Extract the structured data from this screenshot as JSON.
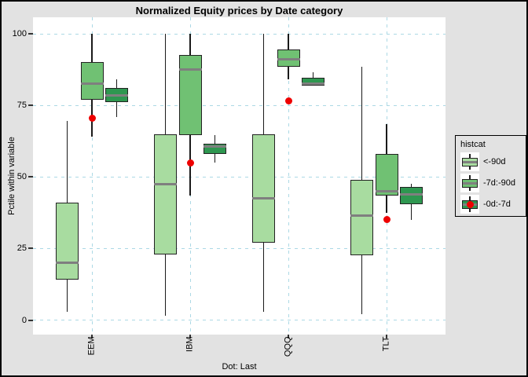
{
  "chart_data": {
    "type": "boxplot",
    "title": "Normalized Equity prices by Date category",
    "ylabel": "Pctile within variable",
    "xlabel": "Dot: Last",
    "ylim": [
      0,
      100
    ],
    "yticks": [
      0,
      25,
      50,
      75,
      100
    ],
    "categories": [
      "EEM",
      "IBM",
      "QQQ",
      "TLT"
    ],
    "grid": true,
    "legend": {
      "title": "histcat",
      "position": "right"
    },
    "colors": {
      "grid": "#ACD9E5",
      "median": "#7F7F7F",
      "box_border": "#222222",
      "panel_bg": "#FFFFFF",
      "outer_bg": "#E2E2E2",
      "dot": "#EE0000"
    },
    "series": [
      {
        "name": "<-90d",
        "color": "#A8DCA0",
        "boxes": [
          {
            "lo": 3,
            "q1": 14,
            "med": 20,
            "q3": 41,
            "hi": 69.5
          },
          {
            "lo": 1.5,
            "q1": 23,
            "med": 47.5,
            "q3": 65,
            "hi": 100
          },
          {
            "lo": 3,
            "q1": 27,
            "med": 42.5,
            "q3": 65,
            "hi": 100
          },
          {
            "lo": 2,
            "q1": 22.5,
            "med": 36.5,
            "q3": 49,
            "hi": 88.5
          }
        ]
      },
      {
        "name": "-7d:-90d",
        "color": "#70C173",
        "boxes": [
          {
            "lo": 64,
            "q1": 77,
            "med": 82.5,
            "q3": 90,
            "hi": 100
          },
          {
            "lo": 43.5,
            "q1": 64.5,
            "med": 87.5,
            "q3": 92.5,
            "hi": 100
          },
          {
            "lo": 84,
            "q1": 88.5,
            "med": 91,
            "q3": 94.5,
            "hi": 100
          },
          {
            "lo": 37.5,
            "q1": 43.5,
            "med": 45,
            "q3": 58,
            "hi": 68.5
          }
        ]
      },
      {
        "name": "-0d:-7d",
        "color": "#2E9750",
        "boxes": [
          {
            "lo": 71,
            "q1": 76,
            "med": 78.5,
            "q3": 81,
            "hi": 84
          },
          {
            "lo": 55,
            "q1": 58,
            "med": 60.5,
            "q3": 61.5,
            "hi": 64.5
          },
          {
            "lo": 82,
            "q1": 82,
            "med": 82.5,
            "q3": 84.5,
            "hi": 86.5
          },
          {
            "lo": 35,
            "q1": 40.5,
            "med": 44,
            "q3": 46.5,
            "hi": 47.5
          }
        ],
        "dots": [
          70.5,
          55,
          76.5,
          35
        ],
        "dot_color": "#EE0000"
      }
    ]
  }
}
